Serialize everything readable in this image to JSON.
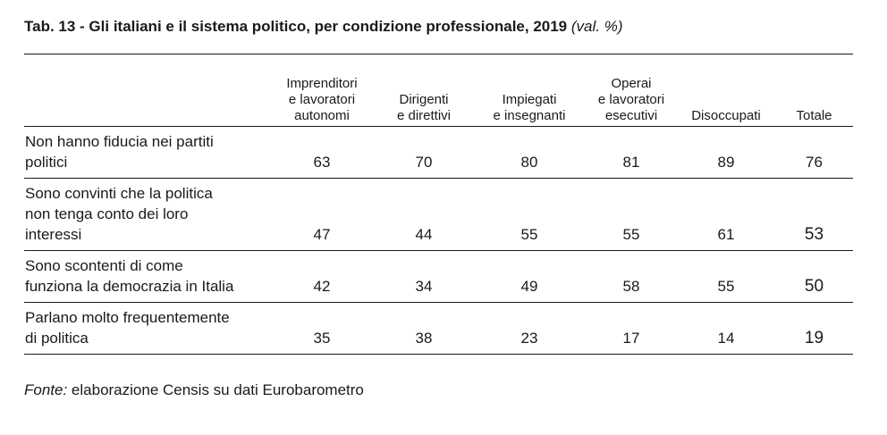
{
  "title": {
    "main": "Tab. 13 - Gli italiani e il sistema politico, per condizione professionale, 2019",
    "unit": "(val. %)"
  },
  "table": {
    "columns": [
      [
        "Imprenditori",
        "e lavoratori",
        "autonomi"
      ],
      [
        "Dirigenti",
        "e direttivi"
      ],
      [
        "Impiegati",
        "e insegnanti"
      ],
      [
        "Operai",
        "e lavoratori",
        "esecutivi"
      ],
      [
        "Disoccupati"
      ],
      [
        "Totale"
      ]
    ],
    "rows": [
      {
        "label": [
          "Non hanno fiducia nei partiti",
          "politici"
        ],
        "values": [
          "63",
          "70",
          "80",
          "81",
          "89",
          "76"
        ]
      },
      {
        "label": [
          "Sono convinti che la politica",
          "non tenga conto dei loro",
          "interessi"
        ],
        "values": [
          "47",
          "44",
          "55",
          "55",
          "61",
          "53"
        ]
      },
      {
        "label": [
          "Sono scontenti di come",
          "funziona la democrazia in Italia"
        ],
        "values": [
          "42",
          "34",
          "49",
          "58",
          "55",
          "50"
        ]
      },
      {
        "label": [
          "Parlano molto frequentemente",
          "di politica"
        ],
        "values": [
          "35",
          "38",
          "23",
          "17",
          "14",
          "19"
        ]
      }
    ]
  },
  "footer": {
    "source_label": "Fonte:",
    "source_text": " elaborazione Censis su dati Eurobarometro"
  }
}
